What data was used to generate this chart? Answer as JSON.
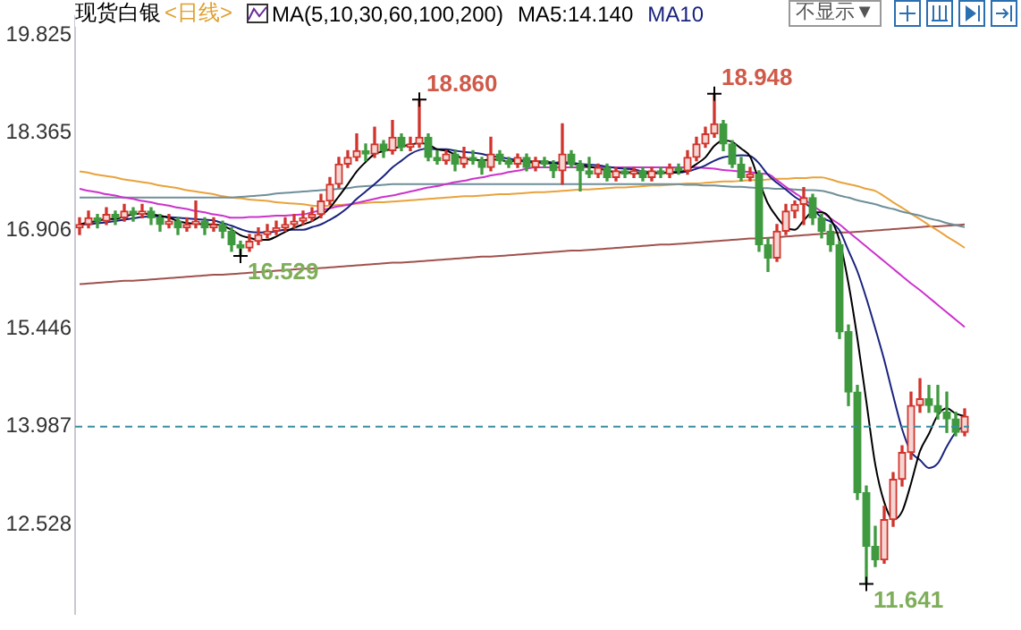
{
  "chart_data": {
    "type": "candlestick",
    "title": "现货白银",
    "subtitle": "<日线>",
    "annotations": [
      "MA(5,10,30,60,100,200)",
      "不显示▼",
      "18.860",
      "18.948",
      "16.529",
      "11.641"
    ],
    "categories": [
      null,
      null,
      null,
      null,
      null,
      null,
      null,
      null,
      null,
      null,
      null,
      null,
      null,
      null,
      null,
      null,
      null,
      null,
      null,
      null,
      null,
      null,
      null,
      null,
      null,
      null,
      null,
      null,
      null,
      null,
      null,
      null,
      null,
      null,
      null,
      null,
      null,
      null,
      null,
      null,
      null,
      null,
      null,
      null,
      null,
      null,
      null,
      null,
      null,
      null,
      null,
      null,
      null,
      null,
      null,
      null,
      null,
      null,
      null,
      null,
      null,
      null,
      null,
      null,
      null,
      null,
      null,
      null,
      null,
      null,
      null,
      null,
      null,
      null,
      null,
      null,
      null,
      null,
      null,
      null,
      null,
      null,
      null,
      null,
      null,
      null,
      null,
      null,
      null,
      null,
      null,
      null,
      null,
      null,
      null,
      null,
      null,
      null,
      null,
      null
    ],
    "ohlc": [
      [
        16.95,
        17.1,
        16.85,
        17.0
      ],
      [
        17.0,
        17.2,
        16.95,
        17.1
      ],
      [
        17.1,
        17.15,
        16.95,
        17.05
      ],
      [
        17.05,
        17.25,
        17.0,
        17.15
      ],
      [
        17.15,
        17.2,
        17.0,
        17.1
      ],
      [
        17.1,
        17.3,
        17.05,
        17.2
      ],
      [
        17.2,
        17.25,
        17.05,
        17.15
      ],
      [
        17.15,
        17.3,
        17.1,
        17.2
      ],
      [
        17.2,
        17.25,
        17.0,
        17.1
      ],
      [
        17.1,
        17.15,
        16.9,
        17.0
      ],
      [
        17.0,
        17.15,
        16.95,
        17.05
      ],
      [
        17.05,
        17.1,
        16.85,
        16.95
      ],
      [
        16.95,
        17.1,
        16.9,
        17.0
      ],
      [
        17.0,
        17.35,
        16.95,
        17.05
      ],
      [
        17.05,
        17.1,
        16.85,
        16.95
      ],
      [
        16.95,
        17.1,
        16.9,
        17.0
      ],
      [
        17.0,
        17.05,
        16.8,
        16.9
      ],
      [
        16.9,
        16.95,
        16.6,
        16.7
      ],
      [
        16.7,
        16.75,
        16.529,
        16.65
      ],
      [
        16.65,
        16.85,
        16.6,
        16.75
      ],
      [
        16.75,
        16.95,
        16.7,
        16.85
      ],
      [
        16.85,
        17.0,
        16.8,
        16.9
      ],
      [
        16.9,
        17.05,
        16.85,
        16.95
      ],
      [
        16.95,
        17.1,
        16.9,
        17.0
      ],
      [
        17.0,
        17.15,
        16.95,
        17.05
      ],
      [
        17.05,
        17.2,
        17.0,
        17.1
      ],
      [
        17.1,
        17.25,
        17.05,
        17.15
      ],
      [
        17.15,
        17.45,
        17.1,
        17.35
      ],
      [
        17.35,
        17.7,
        17.3,
        17.6
      ],
      [
        17.6,
        18.0,
        17.55,
        17.9
      ],
      [
        17.9,
        18.1,
        17.85,
        18.0
      ],
      [
        18.0,
        18.35,
        17.95,
        18.1
      ],
      [
        18.1,
        18.2,
        17.95,
        18.05
      ],
      [
        18.05,
        18.45,
        18.0,
        18.2
      ],
      [
        18.2,
        18.25,
        18.0,
        18.1
      ],
      [
        18.1,
        18.55,
        18.05,
        18.3
      ],
      [
        18.3,
        18.35,
        18.1,
        18.15
      ],
      [
        18.15,
        18.3,
        18.1,
        18.2
      ],
      [
        18.2,
        18.86,
        18.15,
        18.3
      ],
      [
        18.3,
        18.35,
        17.95,
        18.0
      ],
      [
        18.0,
        18.1,
        17.9,
        17.95
      ],
      [
        17.95,
        18.1,
        17.9,
        18.05
      ],
      [
        18.05,
        18.1,
        17.8,
        17.9
      ],
      [
        17.9,
        18.15,
        17.85,
        18.0
      ],
      [
        18.0,
        18.1,
        17.9,
        17.95
      ],
      [
        17.95,
        18.0,
        17.75,
        17.85
      ],
      [
        17.85,
        18.3,
        17.8,
        18.05
      ],
      [
        18.05,
        18.1,
        17.9,
        17.95
      ],
      [
        17.95,
        18.0,
        17.85,
        17.9
      ],
      [
        17.9,
        18.05,
        17.85,
        18.0
      ],
      [
        18.0,
        18.05,
        17.8,
        17.85
      ],
      [
        17.85,
        18.0,
        17.8,
        17.95
      ],
      [
        17.95,
        18.0,
        17.85,
        17.9
      ],
      [
        17.9,
        17.95,
        17.7,
        17.8
      ],
      [
        17.8,
        18.5,
        17.6,
        18.05
      ],
      [
        18.05,
        18.1,
        17.85,
        17.9
      ],
      [
        17.9,
        17.95,
        17.5,
        17.8
      ],
      [
        17.8,
        18.0,
        17.7,
        17.75
      ],
      [
        17.75,
        17.9,
        17.7,
        17.85
      ],
      [
        17.85,
        17.9,
        17.65,
        17.7
      ],
      [
        17.7,
        17.85,
        17.65,
        17.8
      ],
      [
        17.8,
        17.85,
        17.7,
        17.75
      ],
      [
        17.75,
        17.85,
        17.7,
        17.8
      ],
      [
        17.8,
        17.85,
        17.65,
        17.7
      ],
      [
        17.7,
        17.85,
        17.65,
        17.8
      ],
      [
        17.8,
        17.85,
        17.7,
        17.75
      ],
      [
        17.75,
        17.9,
        17.7,
        17.85
      ],
      [
        17.85,
        17.9,
        17.75,
        17.8
      ],
      [
        17.8,
        18.1,
        17.75,
        18.0
      ],
      [
        18.0,
        18.3,
        17.95,
        18.2
      ],
      [
        18.2,
        18.45,
        18.15,
        18.35
      ],
      [
        18.35,
        18.948,
        18.3,
        18.5
      ],
      [
        18.5,
        18.55,
        18.1,
        18.2
      ],
      [
        18.2,
        18.25,
        17.85,
        17.9
      ],
      [
        17.9,
        18.0,
        17.65,
        17.7
      ],
      [
        17.7,
        17.85,
        17.65,
        17.75
      ],
      [
        17.75,
        17.8,
        16.6,
        16.7
      ],
      [
        16.7,
        16.8,
        16.3,
        16.5
      ],
      [
        16.5,
        17.0,
        16.45,
        16.9
      ],
      [
        16.9,
        17.3,
        16.85,
        17.2
      ],
      [
        17.2,
        17.35,
        17.1,
        17.3
      ],
      [
        17.3,
        17.55,
        17.0,
        17.4
      ],
      [
        17.4,
        17.45,
        17.0,
        17.1
      ],
      [
        17.1,
        17.15,
        16.8,
        16.9
      ],
      [
        16.9,
        17.0,
        16.6,
        16.7
      ],
      [
        16.7,
        16.75,
        15.3,
        15.4
      ],
      [
        15.4,
        15.5,
        14.3,
        14.5
      ],
      [
        14.5,
        14.6,
        12.9,
        13.0
      ],
      [
        13.0,
        13.1,
        11.641,
        12.2
      ],
      [
        12.2,
        12.5,
        11.9,
        12.0
      ],
      [
        12.0,
        12.8,
        11.95,
        12.6
      ],
      [
        12.6,
        13.3,
        12.5,
        13.2
      ],
      [
        13.2,
        13.7,
        13.1,
        13.6
      ],
      [
        13.6,
        14.5,
        13.5,
        14.3
      ],
      [
        14.3,
        14.7,
        14.2,
        14.4
      ],
      [
        14.4,
        14.6,
        14.2,
        14.3
      ],
      [
        14.3,
        14.6,
        14.1,
        14.2
      ],
      [
        14.2,
        14.5,
        13.9,
        14.1
      ],
      [
        14.1,
        14.2,
        13.85,
        13.9
      ],
      [
        13.9,
        14.25,
        13.85,
        14.14
      ]
    ],
    "series": [
      {
        "type": "line",
        "name": "MA5:14.140",
        "color": "#000000",
        "values": [
          17.0,
          17.03,
          17.05,
          17.08,
          17.08,
          17.12,
          17.15,
          17.16,
          17.15,
          17.13,
          17.1,
          17.05,
          17.02,
          17.01,
          17.0,
          17.0,
          16.98,
          16.92,
          16.84,
          16.8,
          16.77,
          16.77,
          16.82,
          16.89,
          16.95,
          17.0,
          17.05,
          17.13,
          17.25,
          17.42,
          17.6,
          17.79,
          17.93,
          18.05,
          18.09,
          18.13,
          18.16,
          18.19,
          18.21,
          18.19,
          18.12,
          18.1,
          18.04,
          17.98,
          17.97,
          17.95,
          17.97,
          17.96,
          17.94,
          17.95,
          17.93,
          17.92,
          17.92,
          17.9,
          17.91,
          17.9,
          17.89,
          17.86,
          17.84,
          17.8,
          17.78,
          17.77,
          17.78,
          17.75,
          17.77,
          17.76,
          17.78,
          17.78,
          17.82,
          17.9,
          18.0,
          18.17,
          18.25,
          18.23,
          18.13,
          18.01,
          17.65,
          17.31,
          17.11,
          16.96,
          16.92,
          17.06,
          17.18,
          17.18,
          17.08,
          16.76,
          16.12,
          15.3,
          14.36,
          13.42,
          12.86,
          12.6,
          12.72,
          13.14,
          13.62,
          13.88,
          14.16,
          14.26,
          14.18,
          14.14
        ]
      },
      {
        "type": "line",
        "name": "MA10",
        "color": "#1a237e",
        "values": [
          17.0,
          17.0,
          17.02,
          17.03,
          17.05,
          17.07,
          17.09,
          17.11,
          17.12,
          17.12,
          17.11,
          17.1,
          17.09,
          17.08,
          17.07,
          17.06,
          17.02,
          16.98,
          16.93,
          16.89,
          16.88,
          16.88,
          16.9,
          16.92,
          16.92,
          16.92,
          16.96,
          17.0,
          17.07,
          17.15,
          17.25,
          17.38,
          17.49,
          17.6,
          17.72,
          17.85,
          17.95,
          18.05,
          18.11,
          18.13,
          18.12,
          18.12,
          18.1,
          18.08,
          18.07,
          18.05,
          18.02,
          18.0,
          17.98,
          17.96,
          17.95,
          17.94,
          17.94,
          17.92,
          17.93,
          17.92,
          17.9,
          17.89,
          17.88,
          17.86,
          17.84,
          17.83,
          17.82,
          17.79,
          17.78,
          17.77,
          17.77,
          17.77,
          17.79,
          17.83,
          17.88,
          17.95,
          18.0,
          18.02,
          18.03,
          18.02,
          17.91,
          17.74,
          17.62,
          17.52,
          17.41,
          17.33,
          17.23,
          17.1,
          17.04,
          16.91,
          16.61,
          16.3,
          15.9,
          15.45,
          14.98,
          14.45,
          13.95,
          13.61,
          13.49,
          13.37,
          13.44,
          13.69,
          13.9,
          14.0
        ]
      },
      {
        "type": "line",
        "color": "#cc33cc",
        "values": [
          17.53,
          17.5,
          17.48,
          17.45,
          17.43,
          17.4,
          17.38,
          17.35,
          17.33,
          17.3,
          17.28,
          17.25,
          17.23,
          17.2,
          17.18,
          17.15,
          17.13,
          17.1,
          17.1,
          17.11,
          17.11,
          17.12,
          17.13,
          17.13,
          17.14,
          17.15,
          17.18,
          17.21,
          17.24,
          17.27,
          17.29,
          17.32,
          17.35,
          17.38,
          17.41,
          17.43,
          17.46,
          17.49,
          17.52,
          17.55,
          17.57,
          17.6,
          17.63,
          17.65,
          17.68,
          17.7,
          17.73,
          17.75,
          17.78,
          17.8,
          17.83,
          17.85,
          17.85,
          17.85,
          17.85,
          17.85,
          17.85,
          17.85,
          17.85,
          17.85,
          17.85,
          17.85,
          17.85,
          17.85,
          17.85,
          17.85,
          17.85,
          17.85,
          17.85,
          17.85,
          17.84,
          17.83,
          17.81,
          17.8,
          17.79,
          17.78,
          17.76,
          17.75,
          17.66,
          17.56,
          17.47,
          17.38,
          17.28,
          17.19,
          17.09,
          17.0,
          16.89,
          16.78,
          16.67,
          16.56,
          16.45,
          16.34,
          16.23,
          16.12,
          16.02,
          15.91,
          15.8,
          15.69,
          15.58,
          15.47
        ]
      },
      {
        "type": "line",
        "color": "#6f8f99",
        "values": [
          17.4,
          17.4,
          17.4,
          17.4,
          17.4,
          17.4,
          17.4,
          17.4,
          17.4,
          17.4,
          17.4,
          17.4,
          17.4,
          17.4,
          17.4,
          17.4,
          17.4,
          17.4,
          17.41,
          17.42,
          17.43,
          17.44,
          17.46,
          17.47,
          17.48,
          17.49,
          17.5,
          17.51,
          17.52,
          17.53,
          17.54,
          17.56,
          17.57,
          17.58,
          17.59,
          17.6,
          17.6,
          17.6,
          17.6,
          17.6,
          17.6,
          17.6,
          17.6,
          17.6,
          17.6,
          17.6,
          17.6,
          17.6,
          17.6,
          17.6,
          17.6,
          17.6,
          17.6,
          17.6,
          17.6,
          17.6,
          17.6,
          17.6,
          17.6,
          17.6,
          17.6,
          17.6,
          17.6,
          17.6,
          17.6,
          17.6,
          17.6,
          17.6,
          17.59,
          17.59,
          17.58,
          17.58,
          17.57,
          17.56,
          17.56,
          17.55,
          17.54,
          17.54,
          17.53,
          17.53,
          17.52,
          17.51,
          17.51,
          17.5,
          17.47,
          17.43,
          17.4,
          17.36,
          17.33,
          17.3,
          17.26,
          17.23,
          17.19,
          17.16,
          17.13,
          17.09,
          17.06,
          17.02,
          16.99,
          16.96
        ]
      },
      {
        "type": "line",
        "color": "#e8a33c",
        "values": [
          17.79,
          17.77,
          17.74,
          17.72,
          17.7,
          17.67,
          17.65,
          17.63,
          17.61,
          17.58,
          17.56,
          17.54,
          17.51,
          17.49,
          17.47,
          17.45,
          17.42,
          17.4,
          17.39,
          17.37,
          17.36,
          17.35,
          17.33,
          17.32,
          17.31,
          17.3,
          17.28,
          17.27,
          17.28,
          17.29,
          17.3,
          17.31,
          17.32,
          17.33,
          17.33,
          17.34,
          17.35,
          17.36,
          17.37,
          17.38,
          17.39,
          17.4,
          17.41,
          17.42,
          17.42,
          17.43,
          17.44,
          17.45,
          17.45,
          17.46,
          17.47,
          17.48,
          17.48,
          17.49,
          17.5,
          17.51,
          17.52,
          17.52,
          17.53,
          17.54,
          17.55,
          17.55,
          17.56,
          17.57,
          17.58,
          17.58,
          17.59,
          17.6,
          17.61,
          17.61,
          17.62,
          17.63,
          17.64,
          17.64,
          17.65,
          17.66,
          17.66,
          17.67,
          17.68,
          17.68,
          17.69,
          17.69,
          17.7,
          17.7,
          17.67,
          17.63,
          17.6,
          17.57,
          17.53,
          17.5,
          17.42,
          17.33,
          17.25,
          17.16,
          17.08,
          16.99,
          16.91,
          16.82,
          16.74,
          16.65
        ]
      },
      {
        "type": "line",
        "color": "#a0524e",
        "values": [
          16.11,
          16.12,
          16.13,
          16.14,
          16.15,
          16.16,
          16.16,
          16.17,
          16.18,
          16.19,
          16.2,
          16.21,
          16.22,
          16.23,
          16.24,
          16.25,
          16.25,
          16.26,
          16.27,
          16.28,
          16.29,
          16.3,
          16.31,
          16.32,
          16.33,
          16.34,
          16.34,
          16.35,
          16.36,
          16.37,
          16.38,
          16.39,
          16.4,
          16.41,
          16.42,
          16.43,
          16.43,
          16.44,
          16.45,
          16.46,
          16.47,
          16.48,
          16.49,
          16.5,
          16.51,
          16.52,
          16.52,
          16.53,
          16.54,
          16.55,
          16.56,
          16.57,
          16.58,
          16.59,
          16.6,
          16.61,
          16.61,
          16.62,
          16.63,
          16.64,
          16.65,
          16.66,
          16.67,
          16.68,
          16.69,
          16.7,
          16.7,
          16.71,
          16.72,
          16.73,
          16.74,
          16.75,
          16.76,
          16.77,
          16.78,
          16.79,
          16.79,
          16.8,
          16.81,
          16.82,
          16.83,
          16.84,
          16.85,
          16.86,
          16.87,
          16.88,
          16.88,
          16.89,
          16.9,
          16.91,
          16.92,
          16.93,
          16.94,
          16.95,
          16.96,
          16.97,
          16.97,
          16.98,
          16.99,
          17.0
        ]
      }
    ],
    "ylim": [
      11.2,
      20.1
    ],
    "yticks": [
      19.825,
      18.365,
      16.906,
      15.446,
      13.987,
      12.528
    ],
    "ref_lines": [
      {
        "axis": "y",
        "value": 13.987,
        "color": "#3a8fa0",
        "line_style": "dashed"
      }
    ],
    "grid": false,
    "legend": "top",
    "tick_labels": "y",
    "marker": "none"
  }
}
